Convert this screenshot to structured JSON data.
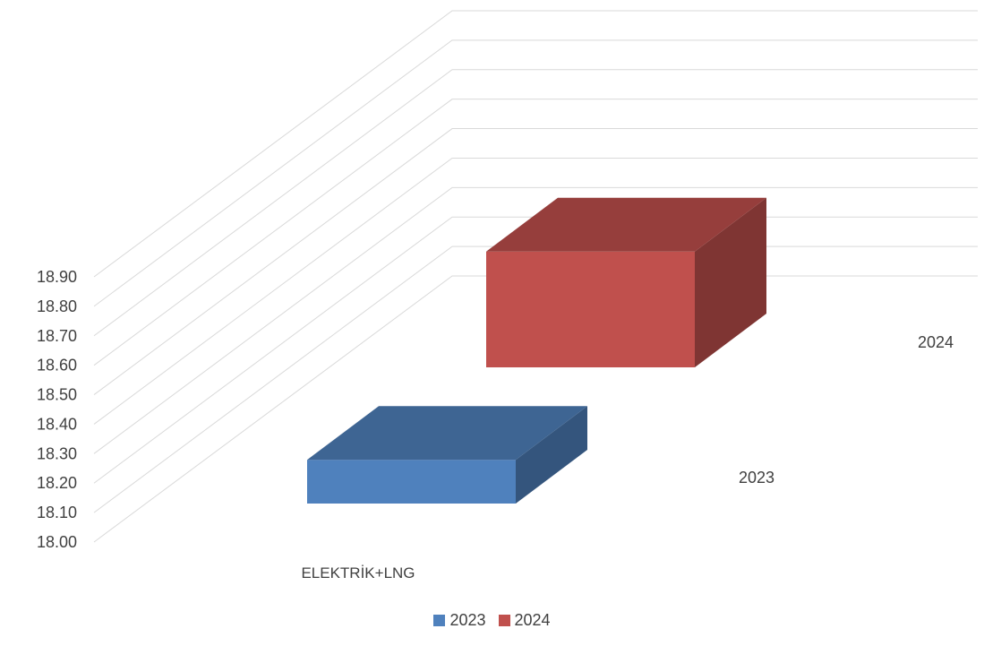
{
  "chart_data": {
    "type": "bar",
    "title": "",
    "categories": [
      "ELEKTRİK+LNG"
    ],
    "series": [
      {
        "name": "2023",
        "values": [
          18.43
        ],
        "color": "#4f81bd"
      },
      {
        "name": "2024",
        "values": [
          18.85
        ],
        "color": "#c0504d"
      }
    ],
    "depth_labels": [
      "2023",
      "2024"
    ],
    "ylim": [
      18.0,
      18.9
    ],
    "yticks": [
      "18.00",
      "18.10",
      "18.20",
      "18.30",
      "18.40",
      "18.50",
      "18.60",
      "18.70",
      "18.80",
      "18.90"
    ],
    "grid": true,
    "legend_position": "bottom",
    "three_d": true
  }
}
